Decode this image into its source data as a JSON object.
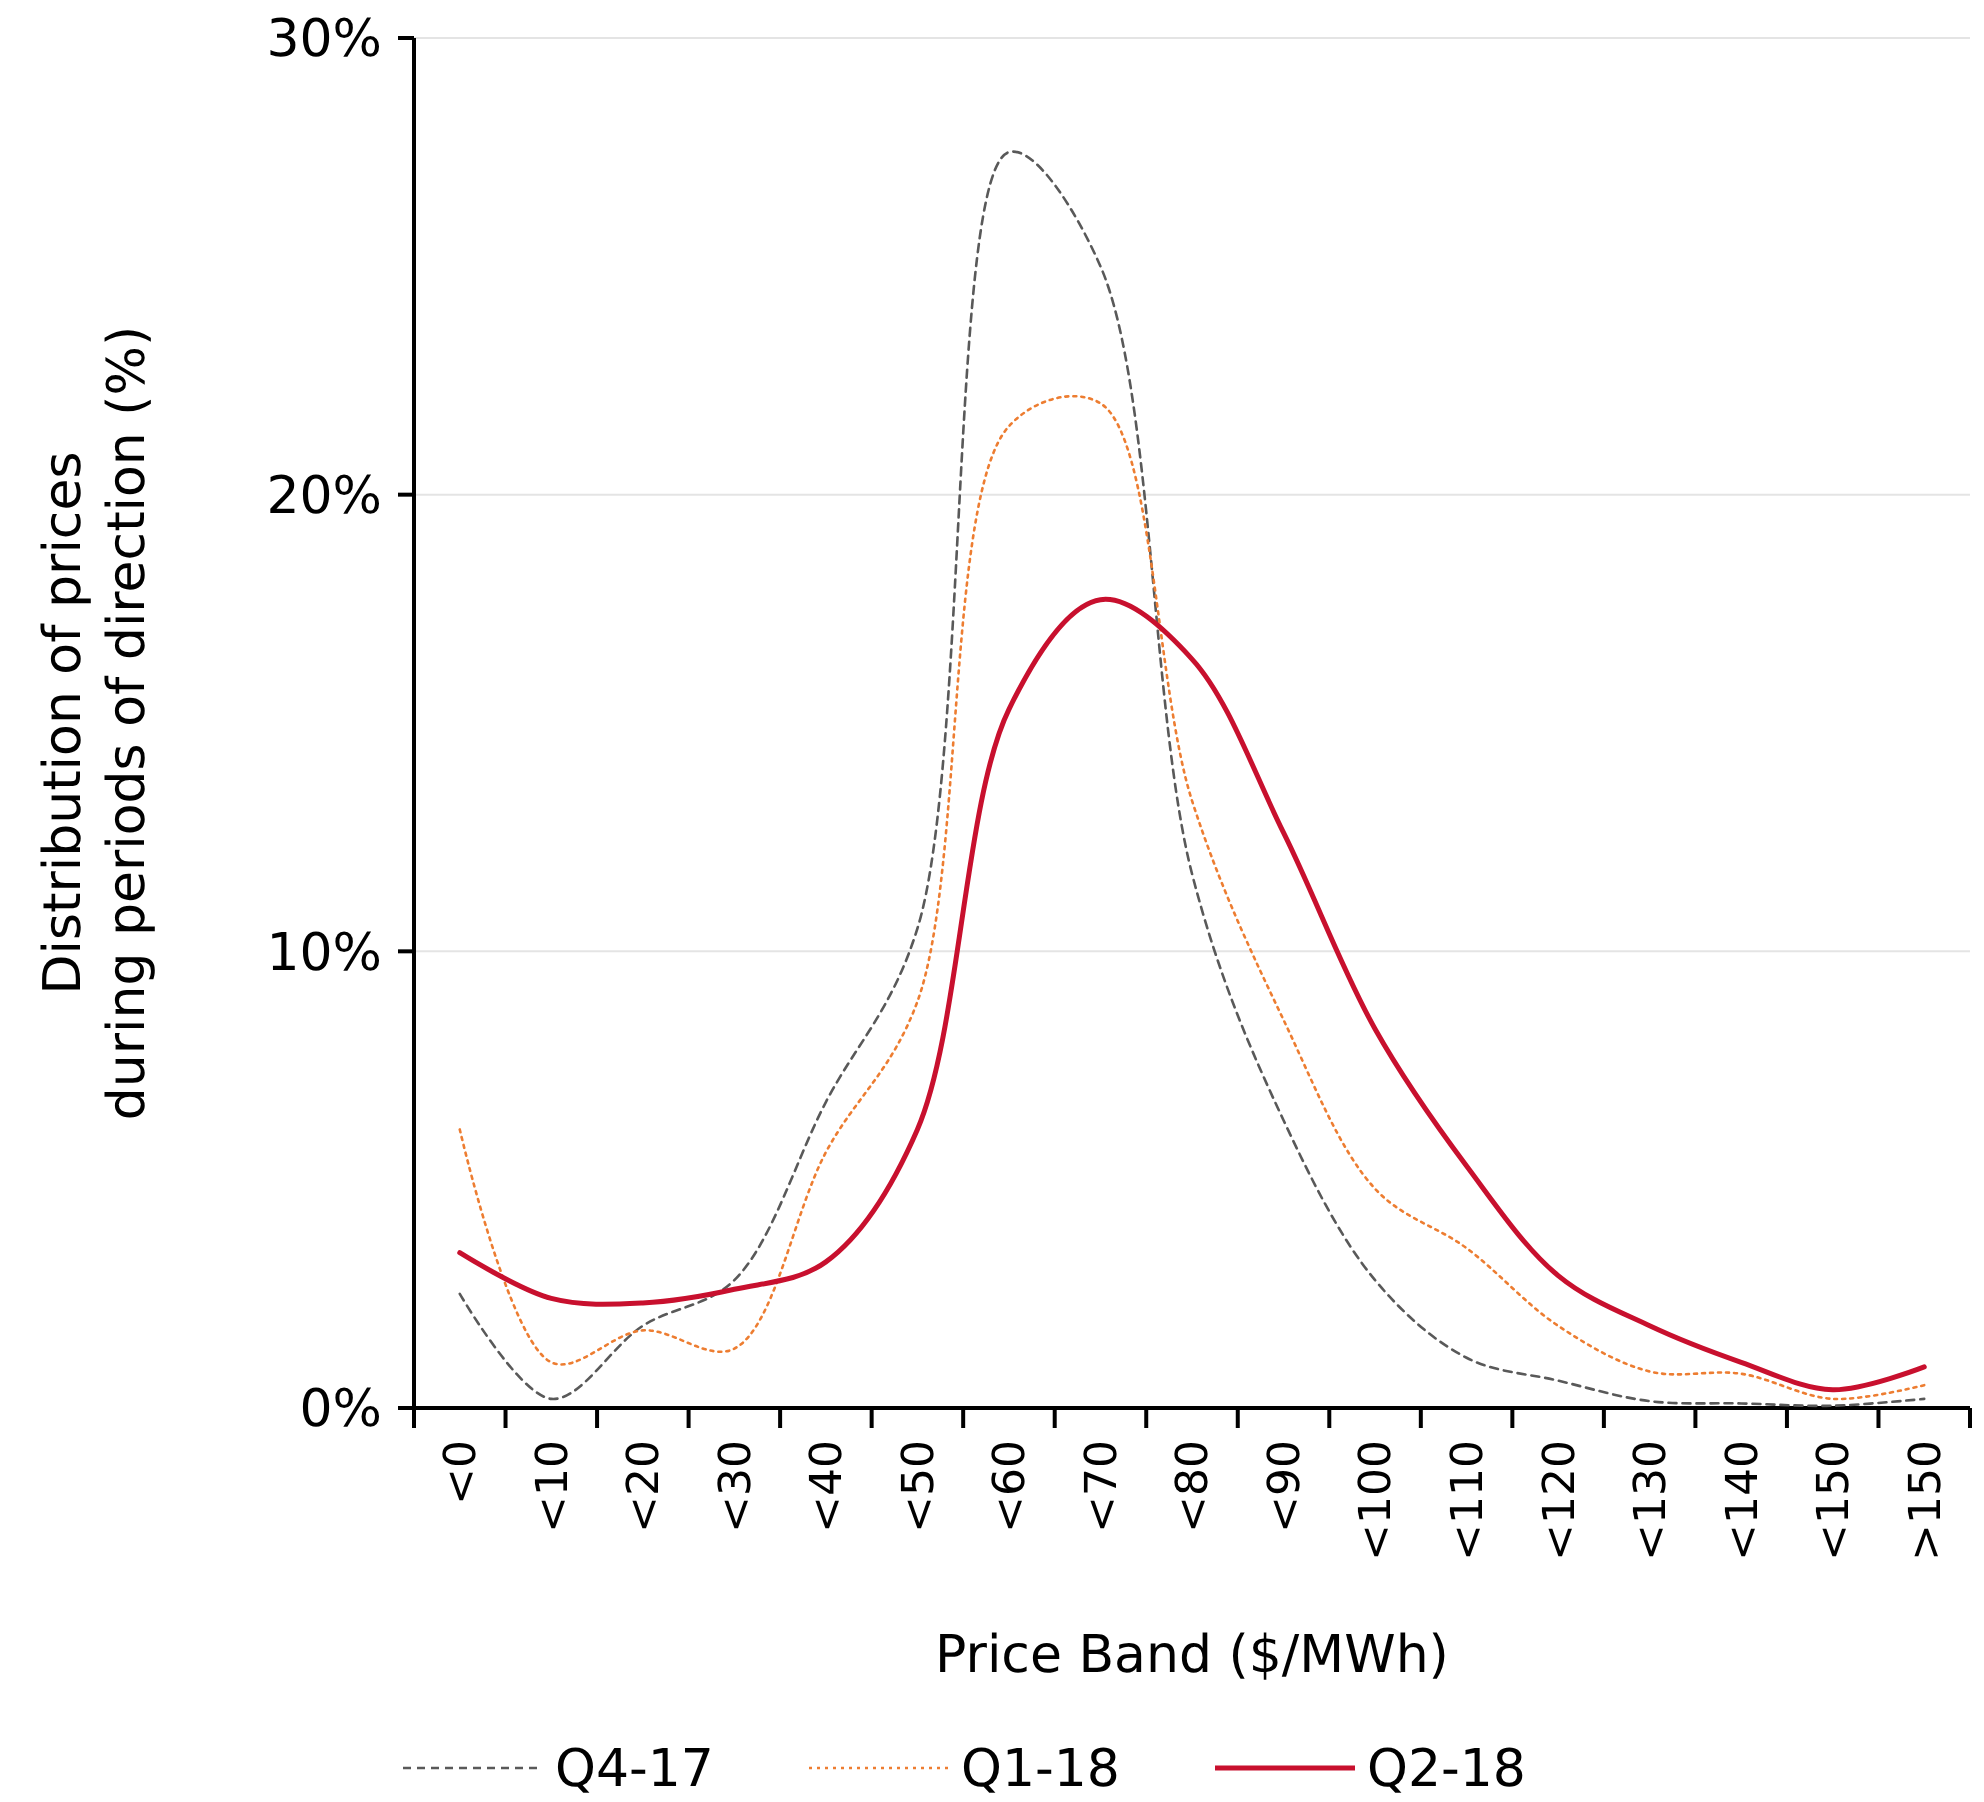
{
  "chart_data": {
    "type": "line",
    "xlabel": "Price Band ($/MWh)",
    "ylabel": "Distribution of prices\nduring periods of direction (%)",
    "categories": [
      "<0",
      "<10",
      "<20",
      "<30",
      "<40",
      "<50",
      "<60",
      "<70",
      "<80",
      "<90",
      "<100",
      "<110",
      "<120",
      "<130",
      "<140",
      "<150",
      ">150"
    ],
    "ylim": [
      0,
      30
    ],
    "yticks": [
      {
        "value": 0,
        "label": "0%"
      },
      {
        "value": 10,
        "label": "10%"
      },
      {
        "value": 20,
        "label": "20%"
      },
      {
        "value": 30,
        "label": "30%"
      }
    ],
    "grid": "y",
    "legend": "bottom",
    "series": [
      {
        "name": "Q4-17",
        "color": "#595959",
        "line_style": "dashed",
        "values": [
          2.5,
          0.2,
          1.8,
          2.8,
          6.7,
          10.5,
          27.5,
          25.0,
          11.7,
          6.3,
          2.8,
          1.1,
          0.6,
          0.15,
          0.1,
          0.05,
          0.2
        ]
      },
      {
        "name": "Q1-18",
        "color": "#ed7d31",
        "line_style": "dotted",
        "values": [
          6.1,
          1.0,
          1.7,
          1.3,
          5.6,
          8.9,
          21.5,
          22.0,
          13.3,
          8.5,
          4.8,
          3.5,
          1.8,
          0.8,
          0.75,
          0.2,
          0.5
        ]
      },
      {
        "name": "Q2-18",
        "color": "#c8102e",
        "line_style": "solid",
        "values": [
          3.4,
          2.4,
          2.3,
          2.6,
          3.2,
          6.1,
          15.3,
          17.7,
          16.4,
          12.6,
          8.3,
          5.3,
          2.9,
          1.8,
          1.0,
          0.4,
          0.9
        ]
      }
    ]
  }
}
